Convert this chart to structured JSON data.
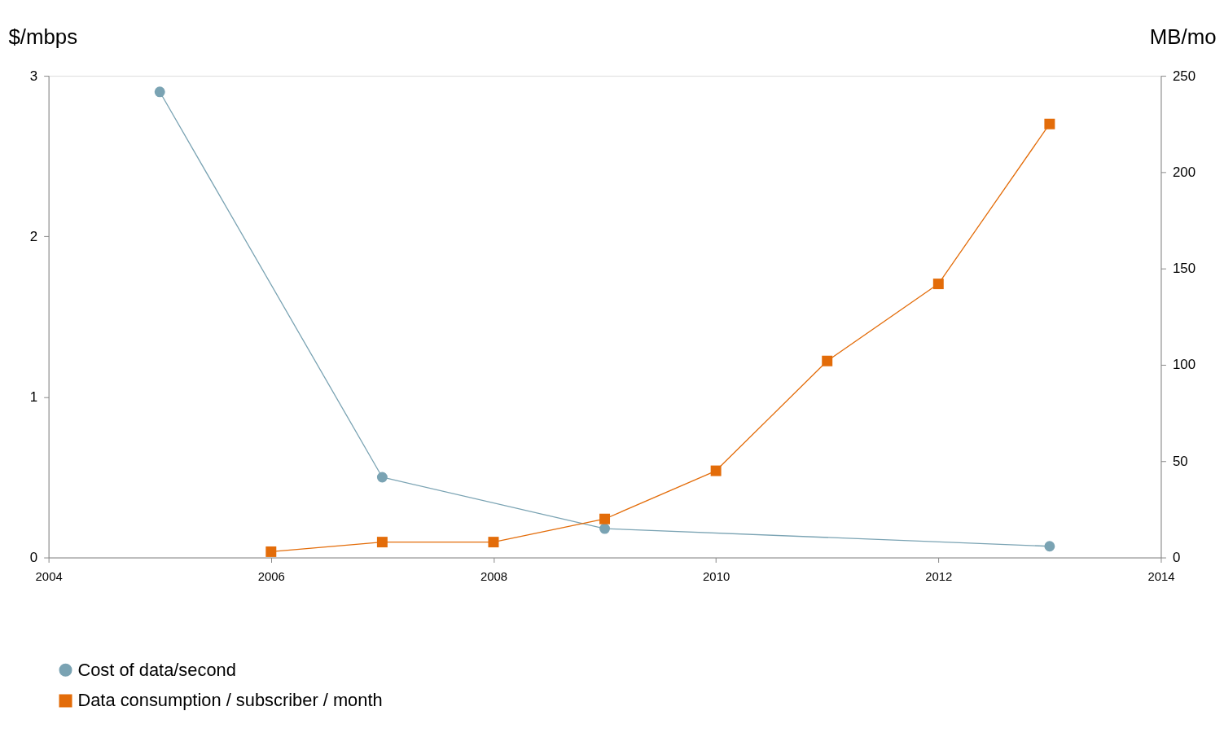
{
  "chart_data": {
    "type": "line",
    "ylabel": "$/mbps",
    "y2label": "MB/mo",
    "x": [
      2005,
      2006,
      2007,
      2008,
      2009,
      2010,
      2011,
      2012,
      2013
    ],
    "xlim": [
      2004,
      2014
    ],
    "xticks": [
      2004,
      2006,
      2008,
      2010,
      2012,
      2014
    ],
    "ylim": [
      0,
      3
    ],
    "yticks": [
      0,
      1,
      2,
      3
    ],
    "y2lim": [
      0,
      250
    ],
    "y2ticks": [
      0,
      50,
      100,
      150,
      200,
      250
    ],
    "series": [
      {
        "name": "Cost of data/second",
        "color": "#7aa3b3",
        "marker": "circle",
        "values": [
          2.9,
          null,
          0.5,
          null,
          0.18,
          null,
          null,
          null,
          0.07
        ]
      },
      {
        "name": "Data consumption / subscriber / month",
        "color": "#e36c09",
        "marker": "square",
        "axis": "y2",
        "values": [
          null,
          3,
          8,
          8,
          20,
          45,
          102,
          142,
          225
        ]
      }
    ],
    "grid": false,
    "legend": "bottom left",
    "line_style": "solid"
  }
}
